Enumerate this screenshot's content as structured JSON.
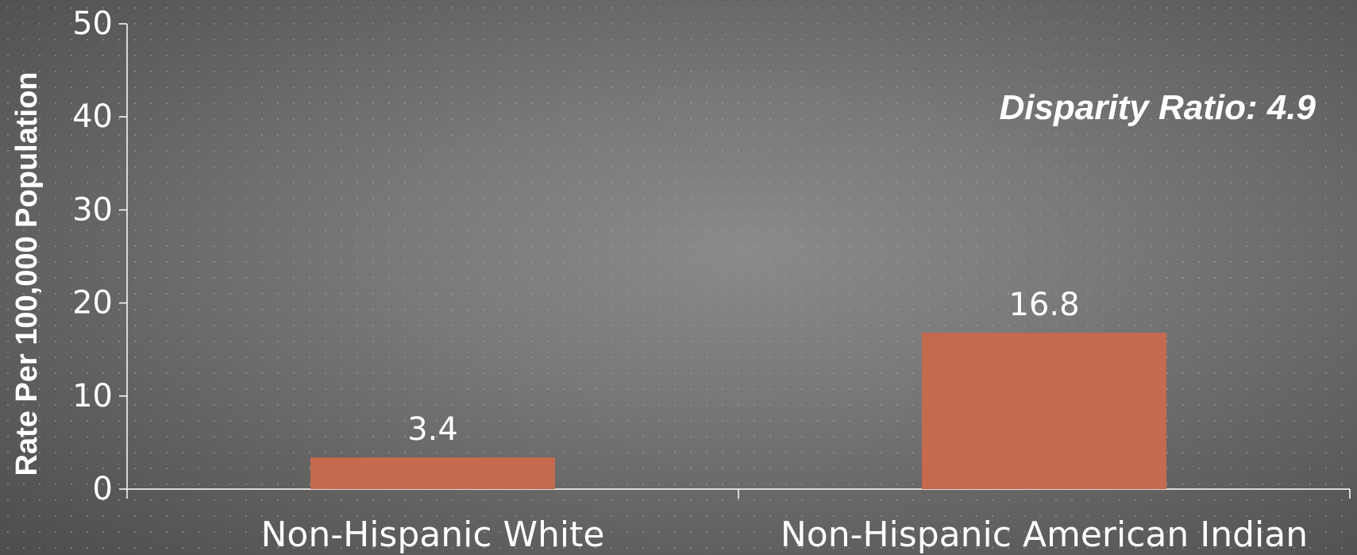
{
  "chart_data": {
    "type": "bar",
    "categories": [
      "Non-Hispanic White",
      "Non-Hispanic American Indian"
    ],
    "values": [
      3.4,
      16.8
    ],
    "data_labels": [
      "3.4",
      "16.8"
    ],
    "ylabel": "Rate Per 100,000 Population",
    "xlabel": "",
    "title": "",
    "ylim": [
      0,
      50
    ],
    "yticks": [
      "0",
      "10",
      "20",
      "30",
      "40",
      "50"
    ],
    "annotation": "Disparity Ratio: 4.9",
    "grid": "dotted",
    "bar_color": "#c5694f"
  }
}
